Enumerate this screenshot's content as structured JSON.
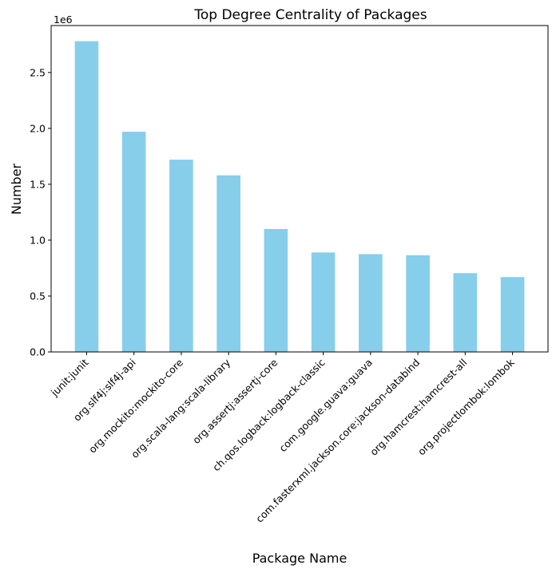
{
  "chart_data": {
    "type": "bar",
    "title": "Top Degree Centrality of Packages",
    "xlabel": "Package Name",
    "ylabel": "Number",
    "y_offset_label": "1e6",
    "categories": [
      "junit:junit",
      "org.slf4j:slf4j-api",
      "org.mockito:mockito-core",
      "org.scala-lang:scala-library",
      "org.assertj:assertj-core",
      "ch.qos.logback:logback-classic",
      "com.google.guava:guava",
      "com.fasterxml.jackson.core:jackson-databind",
      "org.hamcrest:hamcrest-all",
      "org.projectlombok:lombok"
    ],
    "values": [
      2780000,
      1970000,
      1720000,
      1580000,
      1100000,
      890000,
      875000,
      865000,
      705000,
      670000
    ],
    "ylim": [
      0,
      2920000
    ],
    "yticks": [
      {
        "value": 0,
        "label": "0.0"
      },
      {
        "value": 500000,
        "label": "0.5"
      },
      {
        "value": 1000000,
        "label": "1.0"
      },
      {
        "value": 1500000,
        "label": "1.5"
      },
      {
        "value": 2000000,
        "label": "2.0"
      },
      {
        "value": 2500000,
        "label": "2.5"
      }
    ],
    "bar_color": "#87CEEB",
    "grid": false,
    "legend": "none"
  }
}
